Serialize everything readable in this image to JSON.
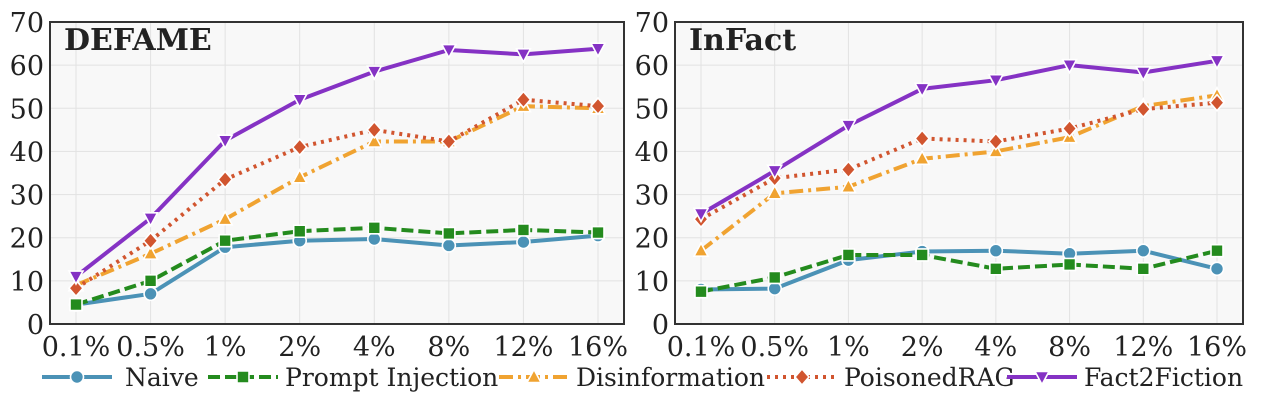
{
  "chart_data": [
    {
      "type": "line",
      "title": "DEFAME",
      "categories": [
        "0.1%",
        "0.5%",
        "1%",
        "2%",
        "4%",
        "8%",
        "12%",
        "16%"
      ],
      "ylim": [
        0,
        70
      ],
      "yticks": [
        0,
        10,
        20,
        30,
        40,
        50,
        60,
        70
      ],
      "grid": true,
      "series": [
        {
          "name": "Naive",
          "values": [
            4.5,
            7.0,
            17.8,
            19.3,
            19.7,
            18.2,
            19.0,
            20.5
          ]
        },
        {
          "name": "Prompt Injection",
          "values": [
            4.5,
            10.0,
            19.3,
            21.5,
            22.3,
            21.0,
            21.8,
            21.2
          ]
        },
        {
          "name": "Disinformation",
          "values": [
            9.0,
            16.3,
            24.3,
            34.0,
            42.3,
            42.3,
            50.5,
            50.0
          ]
        },
        {
          "name": "PoisonedRAG",
          "values": [
            8.3,
            19.3,
            33.5,
            41.0,
            45.0,
            42.3,
            52.0,
            50.5
          ]
        },
        {
          "name": "Fact2Fiction",
          "values": [
            11.0,
            24.5,
            42.5,
            52.0,
            58.5,
            63.5,
            62.5,
            63.8
          ]
        }
      ]
    },
    {
      "type": "line",
      "title": "InFact",
      "categories": [
        "0.1%",
        "0.5%",
        "1%",
        "2%",
        "4%",
        "8%",
        "12%",
        "16%"
      ],
      "ylim": [
        0,
        70
      ],
      "yticks": [
        0,
        10,
        20,
        30,
        40,
        50,
        60,
        70
      ],
      "grid": true,
      "series": [
        {
          "name": "Naive",
          "values": [
            8.0,
            8.2,
            14.8,
            16.8,
            17.0,
            16.3,
            17.0,
            12.8
          ]
        },
        {
          "name": "Prompt Injection",
          "values": [
            7.5,
            10.8,
            16.0,
            16.0,
            12.8,
            13.8,
            12.8,
            17.0
          ]
        },
        {
          "name": "Disinformation",
          "values": [
            17.0,
            30.3,
            31.8,
            38.3,
            40.0,
            43.3,
            50.5,
            53.0
          ]
        },
        {
          "name": "PoisonedRAG",
          "values": [
            24.3,
            33.8,
            35.8,
            43.0,
            42.3,
            45.3,
            49.8,
            51.3
          ]
        },
        {
          "name": "Fact2Fiction",
          "values": [
            25.5,
            35.5,
            46.0,
            54.5,
            56.5,
            60.0,
            58.3,
            61.0
          ]
        }
      ]
    }
  ],
  "legend": {
    "position": "bottom",
    "items": [
      "Naive",
      "Prompt Injection",
      "Disinformation",
      "PoisonedRAG",
      "Fact2Fiction"
    ]
  },
  "series_styles": {
    "Naive": {
      "color": "#4b92b6",
      "marker": "circle",
      "dash": "solid"
    },
    "Prompt Injection": {
      "color": "#248b1e",
      "marker": "square",
      "dash": "dashed"
    },
    "Disinformation": {
      "color": "#f0a331",
      "marker": "triangle-up",
      "dash": "dashdot"
    },
    "PoisonedRAG": {
      "color": "#d1552f",
      "marker": "diamond",
      "dash": "dotted"
    },
    "Fact2Fiction": {
      "color": "#8532c4",
      "marker": "triangle-down",
      "dash": "solid"
    }
  }
}
